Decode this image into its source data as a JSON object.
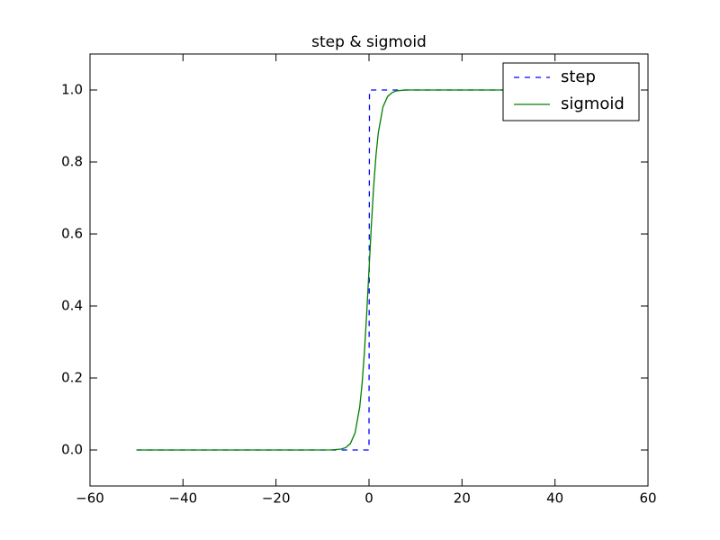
{
  "chart_data": {
    "type": "line",
    "title": "step & sigmoid",
    "series": [
      {
        "name": "step",
        "color": "#0000ff",
        "dash": true,
        "x": [
          -50,
          0,
          0.1,
          50
        ],
        "values": [
          0,
          0,
          1,
          1
        ]
      },
      {
        "name": "sigmoid",
        "color": "#008000",
        "dash": false,
        "x": [
          -50,
          -10,
          -8,
          -6,
          -5,
          -4,
          -3,
          -2,
          -1.5,
          -1,
          -0.5,
          0,
          0.5,
          1,
          1.5,
          2,
          3,
          4,
          5,
          6,
          8,
          10,
          50
        ],
        "values": [
          0,
          0,
          0.0003,
          0.0025,
          0.0067,
          0.018,
          0.047,
          0.119,
          0.182,
          0.269,
          0.378,
          0.5,
          0.622,
          0.731,
          0.818,
          0.881,
          0.953,
          0.982,
          0.993,
          0.998,
          1,
          1,
          1
        ]
      }
    ],
    "xlim": [
      -60,
      60
    ],
    "xticks": [
      {
        "value": -60,
        "label": "−60"
      },
      {
        "value": -40,
        "label": "−40"
      },
      {
        "value": -20,
        "label": "−20"
      },
      0,
      20,
      40,
      60
    ],
    "ylim": [
      -0.1,
      1.1
    ],
    "yticks": [
      {
        "value": 0,
        "label": "0.0"
      },
      0.2,
      0.4,
      0.6,
      0.8,
      {
        "value": 1,
        "label": "1.0"
      }
    ],
    "legend": "upper right",
    "grid": false
  }
}
